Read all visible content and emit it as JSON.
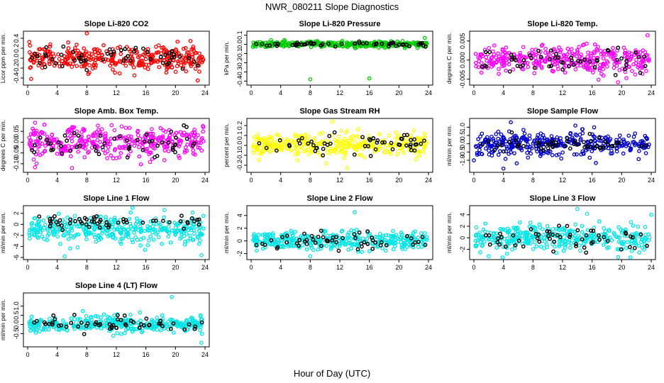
{
  "figure": {
    "title": "NWR_080211  Slope Diagnostics",
    "xlabel": "Hour of Day (UTC)"
  },
  "chart_data": [
    {
      "type": "scatter",
      "title": "Slope Li-820 CO2",
      "ylabel": "Licor ppm per min.",
      "color": "#ff0000",
      "xlim": [
        0,
        24
      ],
      "ylim": [
        -0.5,
        0.5
      ],
      "xticks": [
        "0",
        "4",
        "8",
        "12",
        "16",
        "20",
        "24"
      ],
      "yticks": [
        "-0.4",
        "-0.2",
        "0.0",
        "0.2",
        "0.4"
      ],
      "ytick_values": [
        -0.4,
        -0.2,
        0,
        0.2,
        0.4
      ],
      "spread": 0.12,
      "black_spread": 0.1,
      "outliers": [
        [
          8,
          0.52
        ],
        [
          23,
          -0.45
        ],
        [
          8.2,
          -0.32
        ]
      ],
      "n": 360,
      "n_black": 55
    },
    {
      "type": "scatter",
      "title": "Slope Li-820 Pressure",
      "ylabel": "kPa per min.",
      "color": "#00cc00",
      "xlim": [
        0,
        24
      ],
      "ylim": [
        -0.42,
        0.12
      ],
      "xticks": [
        "0",
        "4",
        "8",
        "12",
        "16",
        "20",
        "24"
      ],
      "yticks": [
        "-0.4",
        "-0.3",
        "-0.2",
        "-0.1",
        "0.0",
        "0.1"
      ],
      "ytick_values": [
        -0.4,
        -0.3,
        -0.2,
        -0.1,
        0,
        0.1
      ],
      "spread": 0.015,
      "black_spread": 0.012,
      "outliers": [
        [
          8,
          -0.38
        ],
        [
          16,
          -0.37
        ],
        [
          23.5,
          0.07
        ]
      ],
      "n": 360,
      "n_black": 55
    },
    {
      "type": "scatter",
      "title": "Slope Li-820 Temp.",
      "ylabel": "degrees C per min.",
      "color": "#ff00ff",
      "xlim": [
        0,
        24
      ],
      "ylim": [
        -0.006,
        0.007
      ],
      "xticks": [
        "0",
        "4",
        "8",
        "12",
        "16",
        "20",
        "24"
      ],
      "yticks": [
        "-0.005",
        "0.000",
        "0.005"
      ],
      "ytick_values": [
        -0.005,
        0,
        0.005
      ],
      "spread": 0.0018,
      "black_spread": 0.0015,
      "outliers": [
        [
          23.5,
          0.0065
        ],
        [
          19.5,
          -0.0058
        ]
      ],
      "n": 360,
      "n_black": 55
    },
    {
      "type": "scatter",
      "title": "Slope Amb. Box Temp.",
      "ylabel": "degrees C per min.",
      "color": "#ff00ff",
      "xlim": [
        0,
        24
      ],
      "ylim": [
        -0.13,
        0.1
      ],
      "xticks": [
        "0",
        "4",
        "8",
        "12",
        "16",
        "20",
        "24"
      ],
      "yticks": [
        "-0.10",
        "-0.05",
        "0.00",
        "0.05"
      ],
      "ytick_values": [
        -0.1,
        -0.05,
        0,
        0.05
      ],
      "spread": 0.035,
      "black_spread": 0.03,
      "outliers": [
        [
          1,
          0.09
        ],
        [
          6,
          -0.12
        ]
      ],
      "n": 360,
      "n_black": 55
    },
    {
      "type": "scatter",
      "title": "Slope Gas Stream RH",
      "ylabel": "percent per min.",
      "color": "#ffff00",
      "xlim": [
        0,
        24
      ],
      "ylim": [
        -0.25,
        0.25
      ],
      "xticks": [
        "0",
        "4",
        "8",
        "12",
        "16",
        "20",
        "24"
      ],
      "yticks": [
        "-0.2",
        "-0.1",
        "0.0",
        "0.1",
        "0.2"
      ],
      "ytick_values": [
        -0.2,
        -0.1,
        0,
        0.1,
        0.2
      ],
      "spread": 0.06,
      "black_spread": 0.05,
      "outliers": [
        [
          11,
          0.24
        ],
        [
          13,
          -0.23
        ]
      ],
      "n": 360,
      "n_black": 55
    },
    {
      "type": "scatter",
      "title": "Slope Sample Flow",
      "ylabel": "ml/min per min.",
      "color": "#0000cc",
      "xlim": [
        0,
        24
      ],
      "ylim": [
        -1.6,
        1.4
      ],
      "xticks": [
        "0",
        "4",
        "8",
        "12",
        "16",
        "20",
        "24"
      ],
      "yticks": [
        "-1.0",
        "-0.5",
        "0.0",
        "0.5",
        "1.0"
      ],
      "ytick_values": [
        -1,
        -0.5,
        0,
        0.5,
        1
      ],
      "spread": 0.35,
      "black_spread": 0.25,
      "outliers": [
        [
          4,
          -1.5
        ],
        [
          5,
          1.3
        ],
        [
          0,
          -1.0
        ]
      ],
      "n": 360,
      "n_black": 55
    },
    {
      "type": "scatter",
      "title": "Slope Line 1 Flow",
      "ylabel": "ml/min per min.",
      "color": "#00e5e5",
      "xlim": [
        0,
        24
      ],
      "ylim": [
        -6,
        3
      ],
      "xticks": [
        "0",
        "4",
        "8",
        "12",
        "16",
        "20",
        "24"
      ],
      "yticks": [
        "-6",
        "-4",
        "-2",
        "0",
        "2"
      ],
      "ytick_values": [
        -6,
        -4,
        -2,
        0,
        2
      ],
      "spread": 1.2,
      "black_spread": 0.6,
      "center": -1,
      "black_center": 0.5,
      "outliers": [
        [
          18.5,
          2.6
        ],
        [
          23.5,
          -5.6
        ],
        [
          5,
          -5.8
        ]
      ],
      "n": 360,
      "n_black": 55
    },
    {
      "type": "scatter",
      "title": "Slope Line 2 Flow",
      "ylabel": "ml/min per min.",
      "color": "#00e5e5",
      "xlim": [
        0,
        24
      ],
      "ylim": [
        -2.6,
        5.2
      ],
      "xticks": [
        "0",
        "4",
        "8",
        "12",
        "16",
        "20",
        "24"
      ],
      "yticks": [
        "-2",
        "0",
        "2",
        "4"
      ],
      "ytick_values": [
        -2,
        0,
        2,
        4
      ],
      "spread": 0.7,
      "black_spread": 0.9,
      "outliers": [
        [
          14,
          4.5
        ],
        [
          8,
          -2.4
        ]
      ],
      "n": 360,
      "n_black": 55
    },
    {
      "type": "scatter",
      "title": "Slope Line 3 Flow",
      "ylabel": "ml/min per min.",
      "color": "#00e5e5",
      "xlim": [
        0,
        24
      ],
      "ylim": [
        -3.4,
        5.2
      ],
      "xticks": [
        "0",
        "4",
        "8",
        "12",
        "16",
        "20",
        "24"
      ],
      "yticks": [
        "-2",
        "0",
        "2",
        "4"
      ],
      "ytick_values": [
        -2,
        0,
        2,
        4
      ],
      "spread": 1.1,
      "black_spread": 1.0,
      "outliers": [
        [
          14,
          5
        ],
        [
          2,
          -3.2
        ],
        [
          24,
          4
        ]
      ],
      "n": 360,
      "n_black": 55
    },
    {
      "type": "scatter",
      "title": "Slope Line 4 (LT) Flow",
      "ylabel": "ml/min per min.",
      "color": "#00e5e5",
      "xlim": [
        0,
        24
      ],
      "ylim": [
        -1.1,
        1.6
      ],
      "xticks": [
        "0",
        "4",
        "8",
        "12",
        "16",
        "20",
        "24"
      ],
      "yticks": [
        "-0.5",
        "0.0",
        "0.5",
        "1.0"
      ],
      "ytick_values": [
        -0.5,
        0,
        0.5,
        1
      ],
      "spread": 0.22,
      "black_spread": 0.25,
      "outliers": [
        [
          19.5,
          1.5
        ],
        [
          23.5,
          -1.0
        ]
      ],
      "n": 360,
      "n_black": 55
    }
  ]
}
